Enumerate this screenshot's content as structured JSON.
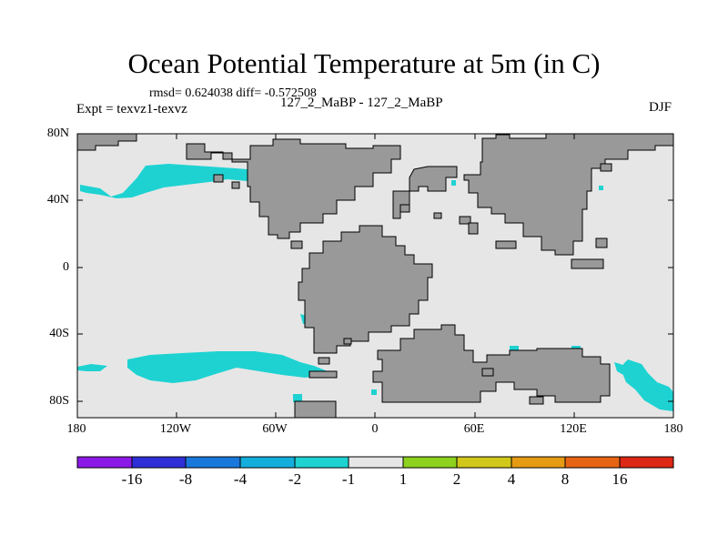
{
  "title": "Ocean Potential Temperature at 5m (in C)",
  "stats": "rmsd= 0.624038 diff= -0.572508",
  "experiment": "Expt = texvz1-texvz",
  "runs": "127_2_MaBP - 127_2_MaBP",
  "season": "DJF",
  "lat_labels": [
    "80N",
    "40N",
    "0",
    "40S",
    "80S"
  ],
  "lon_labels": [
    "180",
    "120W",
    "60W",
    "0",
    "60E",
    "120E",
    "180"
  ],
  "colorbar": {
    "colors": [
      "#8b1ae6",
      "#2f2fd8",
      "#1a78dc",
      "#14aedc",
      "#1ed2d2",
      "#e6e6e6",
      "#8cd21e",
      "#d2c81a",
      "#e69b14",
      "#e66414",
      "#dc2814"
    ],
    "labels": [
      "-16",
      "-8",
      "-4",
      "-2",
      "-1",
      "1",
      "2",
      "4",
      "8",
      "16"
    ]
  },
  "colors": {
    "land": "#999999",
    "ocean": "#e6e6e6",
    "anomaly": "#1ed2d2"
  }
}
